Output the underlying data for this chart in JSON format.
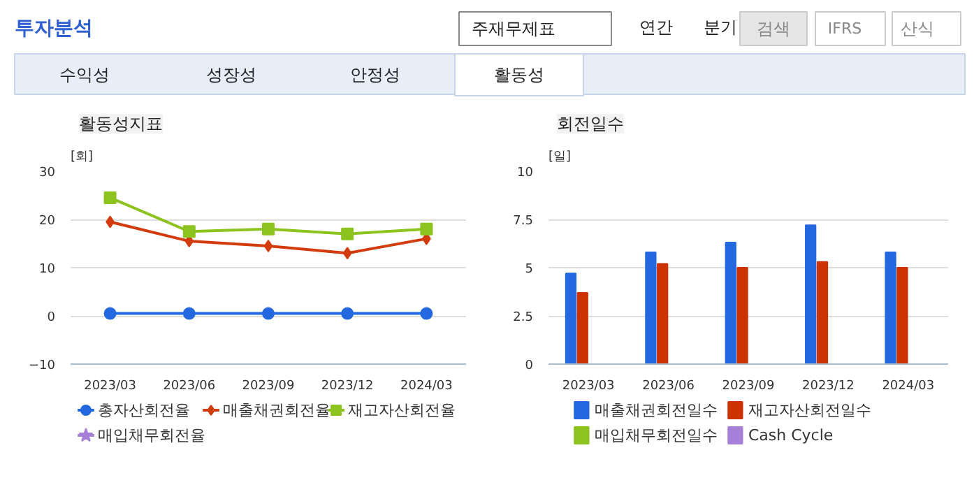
{
  "chart_data": [
    {
      "type": "other",
      "annotations": [
        "투자분석",
        "주재무제표",
        "연간",
        "분기",
        "검색",
        "IFRS",
        "산식",
        "수익성",
        "성장성",
        "안정성",
        "활동성"
      ]
    },
    {
      "type": "line",
      "title": "활동성지표",
      "ylabel": "[회]",
      "categories": [
        "2023/03",
        "2023/06",
        "2023/09",
        "2023/12",
        "2024/03"
      ],
      "ylim": [
        -10,
        30
      ],
      "yticks": [
        -10,
        0,
        10,
        20,
        30
      ],
      "grid": "y",
      "legend": "bottom",
      "series": [
        {
          "name": "총자산회전율",
          "color": "#2468e0",
          "marker": "circle",
          "values": [
            0.5,
            0.5,
            0.5,
            0.5,
            0.5
          ]
        },
        {
          "name": "매출채권회전율",
          "color": "#d23c0c",
          "marker": "diamond",
          "values": [
            19.5,
            15.5,
            14.5,
            13,
            16
          ]
        },
        {
          "name": "재고자산회전율",
          "color": "#8cc31e",
          "marker": "square",
          "values": [
            24.5,
            17.5,
            18,
            17,
            18
          ]
        },
        {
          "name": "매입채무회전율",
          "color": "#a67fd8",
          "marker": "star",
          "values": [
            null,
            null,
            null,
            null,
            null
          ]
        }
      ]
    },
    {
      "type": "bar",
      "title": "회전일수",
      "ylabel": "[일]",
      "categories": [
        "2023/03",
        "2023/06",
        "2023/09",
        "2023/12",
        "2024/03"
      ],
      "ylim": [
        0,
        10
      ],
      "yticks": [
        0,
        2.5,
        5,
        7.5,
        10
      ],
      "grid": "y",
      "legend": "bottom",
      "series": [
        {
          "name": "매출채권회전일수",
          "color": "#2468e0",
          "values": [
            4.7,
            5.8,
            6.3,
            7.2,
            5.8
          ]
        },
        {
          "name": "재고자산회전일수",
          "color": "#cc3300",
          "values": [
            3.7,
            5.2,
            5.0,
            5.3,
            5.0
          ]
        },
        {
          "name": "매입채무회전일수",
          "color": "#8cc31e",
          "values": [
            null,
            null,
            null,
            null,
            null
          ]
        },
        {
          "name": "Cash Cycle",
          "color": "#a67fd8",
          "values": [
            null,
            null,
            null,
            null,
            null
          ]
        }
      ]
    }
  ]
}
